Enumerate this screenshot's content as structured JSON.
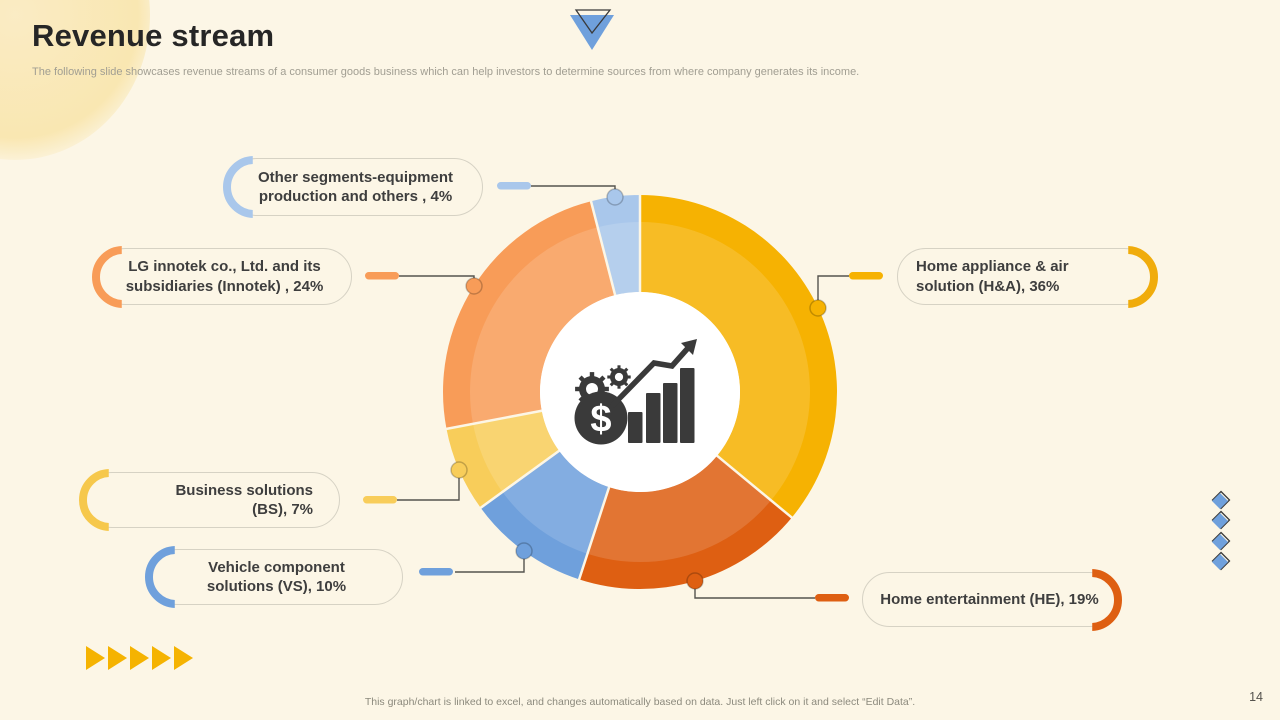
{
  "slide": {
    "title": "Revenue stream",
    "subtitle": "The following slide showcases revenue streams of a consumer goods business which can help investors to determine sources from where company generates its income.",
    "footer": "This graph/chart is linked to excel, and changes automatically based on data. Just left click on it and select “Edit Data”.",
    "page_number": "14",
    "background_color": "#FCF6E6"
  },
  "chart_data": {
    "type": "pie",
    "donut": true,
    "title": "Revenue stream by segment",
    "start_angle_deg": 0,
    "direction": "clockwise",
    "series": [
      {
        "name": "Home appliance & air solution (H&A)",
        "value": 36,
        "color": "#F6B202"
      },
      {
        "name": "Home entertainment (HE)",
        "value": 19,
        "color": "#DE5F12"
      },
      {
        "name": "Vehicle component solutions (VS)",
        "value": 10,
        "color": "#6FA0DC"
      },
      {
        "name": "Business solutions (BS)",
        "value": 7,
        "color": "#F8CD5A"
      },
      {
        "name": "LG innotek co., Ltd. and its subsidiaries (Innotek)",
        "value": 24,
        "color": "#F89C58"
      },
      {
        "name": "Other segments-equipment production and others",
        "value": 4,
        "color": "#A9C7EB"
      }
    ],
    "center_icon": "dollar-coin-gears-growth-bars-arrow",
    "legend_position": "callout-labels"
  },
  "labels": {
    "other": {
      "text": "Other segments-equipment production and others , 4%",
      "color": "#A9C7EB"
    },
    "innotek": {
      "text": "LG innotek co., Ltd. and its subsidiaries (Innotek) , 24%",
      "color": "#F89C58"
    },
    "bs": {
      "text": "Business solutions (BS), 7%",
      "color": "#F6C84C"
    },
    "vs": {
      "text": "Vehicle component solutions (VS), 10%",
      "color": "#6FA0DC"
    },
    "ha": {
      "text": "Home appliance & air solution (H&A), 36%",
      "color": "#F0AC0C"
    },
    "he": {
      "text": "Home entertainment (HE), 19%",
      "color": "#DE5F12"
    }
  },
  "decor": {
    "accent_blue": "#6FA0DC",
    "accent_gold": "#F5B301",
    "outline_dark": "#3A3A3A",
    "icon_dark": "#3A3A3A",
    "connector_line": "#55534E"
  }
}
